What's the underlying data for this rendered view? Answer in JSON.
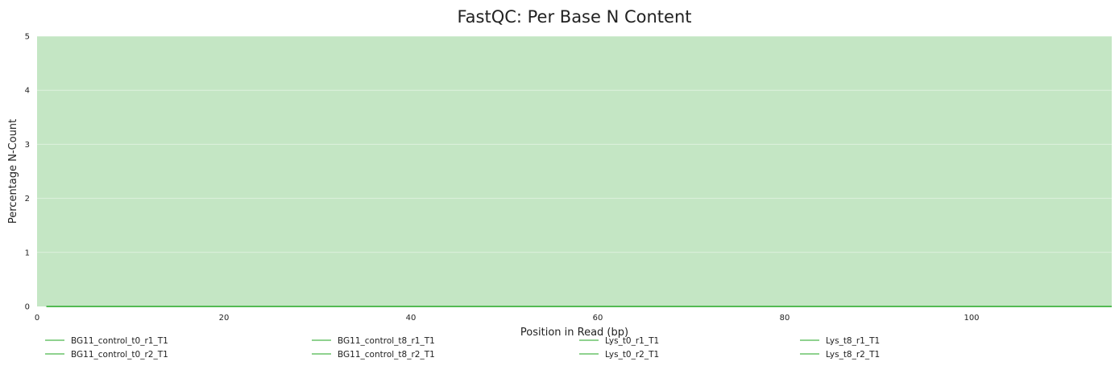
{
  "chart_data": {
    "type": "line",
    "title": "FastQC: Per Base N Content",
    "xlabel": "Position in Read (bp)",
    "ylabel": "Percentage N-Count",
    "xlim": [
      0,
      115
    ],
    "ylim": [
      0,
      5
    ],
    "x_ticks": [
      0,
      20,
      40,
      60,
      80,
      100
    ],
    "y_ticks": [
      0,
      1,
      2,
      3,
      4,
      5
    ],
    "grid": true,
    "background_band": {
      "from": 0,
      "to": 5,
      "color": "#c4e6c4"
    },
    "legend_placement": "bottom",
    "series_color": "#4cb84c",
    "series": [
      {
        "name": "BG11_control_t0_r1_T1",
        "x": [
          1,
          115
        ],
        "y": [
          0,
          0
        ]
      },
      {
        "name": "BG11_control_t0_r2_T1",
        "x": [
          1,
          115
        ],
        "y": [
          0,
          0
        ]
      },
      {
        "name": "BG11_control_t8_r1_T1",
        "x": [
          1,
          115
        ],
        "y": [
          0,
          0
        ]
      },
      {
        "name": "BG11_control_t8_r2_T1",
        "x": [
          1,
          115
        ],
        "y": [
          0,
          0
        ]
      },
      {
        "name": "Lys_t0_r1_T1",
        "x": [
          1,
          115
        ],
        "y": [
          0,
          0
        ]
      },
      {
        "name": "Lys_t0_r2_T1",
        "x": [
          1,
          115
        ],
        "y": [
          0,
          0
        ]
      },
      {
        "name": "Lys_t8_r1_T1",
        "x": [
          1,
          115
        ],
        "y": [
          0,
          0
        ]
      },
      {
        "name": "Lys_t8_r2_T1",
        "x": [
          1,
          115
        ],
        "y": [
          0,
          0
        ]
      }
    ]
  }
}
